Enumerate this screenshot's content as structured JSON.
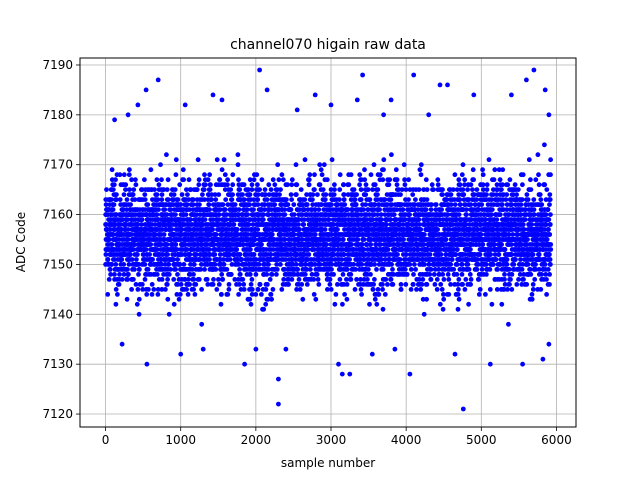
{
  "chart_data": {
    "type": "scatter",
    "title": "channel070 higain raw data",
    "xlabel": "sample number",
    "ylabel": "ADC Code",
    "xlim": [
      -340,
      6260
    ],
    "ylim": [
      7117.4,
      7191.4
    ],
    "xticks": [
      0,
      1000,
      2000,
      3000,
      4000,
      5000,
      6000
    ],
    "yticks": [
      7120,
      7130,
      7140,
      7150,
      7160,
      7170,
      7180,
      7190
    ],
    "grid": true,
    "series": [
      {
        "color": "#0000ff",
        "n_samples": 5925,
        "baseline": 7156,
        "band": [
          7140,
          7170
        ],
        "points": [
          [
            2050,
            7189
          ],
          [
            5700,
            7189
          ],
          [
            1430,
            7184
          ],
          [
            2790,
            7184
          ],
          [
            3420,
            7188
          ],
          [
            4100,
            7188
          ],
          [
            4760,
            7121
          ],
          [
            2300,
            7122
          ],
          [
            2300,
            7127
          ],
          [
            3100,
            7130
          ],
          [
            3150,
            7128
          ],
          [
            3250,
            7128
          ],
          [
            4050,
            7128
          ],
          [
            5120,
            7130
          ],
          [
            5550,
            7130
          ],
          [
            1850,
            7130
          ],
          [
            1060,
            7182
          ],
          [
            700,
            7187
          ],
          [
            5400,
            7184
          ],
          [
            4900,
            7184
          ],
          [
            5600,
            7187
          ],
          [
            2150,
            7185
          ],
          [
            300,
            7180
          ],
          [
            430,
            7182
          ],
          [
            4450,
            7186
          ],
          [
            4550,
            7186
          ],
          [
            5850,
            7185
          ],
          [
            5900,
            7180
          ],
          [
            3000,
            7182
          ],
          [
            3700,
            7180
          ],
          [
            3800,
            7183
          ],
          [
            4300,
            7180
          ],
          [
            1550,
            7183
          ],
          [
            540,
            7185
          ],
          [
            550,
            7130
          ],
          [
            1000,
            7132
          ],
          [
            1300,
            7133
          ],
          [
            2000,
            7133
          ],
          [
            2400,
            7133
          ],
          [
            3550,
            7132
          ],
          [
            3850,
            7133
          ],
          [
            4650,
            7132
          ],
          [
            5820,
            7131
          ],
          [
            5900,
            7134
          ],
          [
            220,
            7134
          ],
          [
            120,
            7179
          ],
          [
            2550,
            7181
          ],
          [
            3350,
            7183
          ]
        ]
      }
    ]
  }
}
